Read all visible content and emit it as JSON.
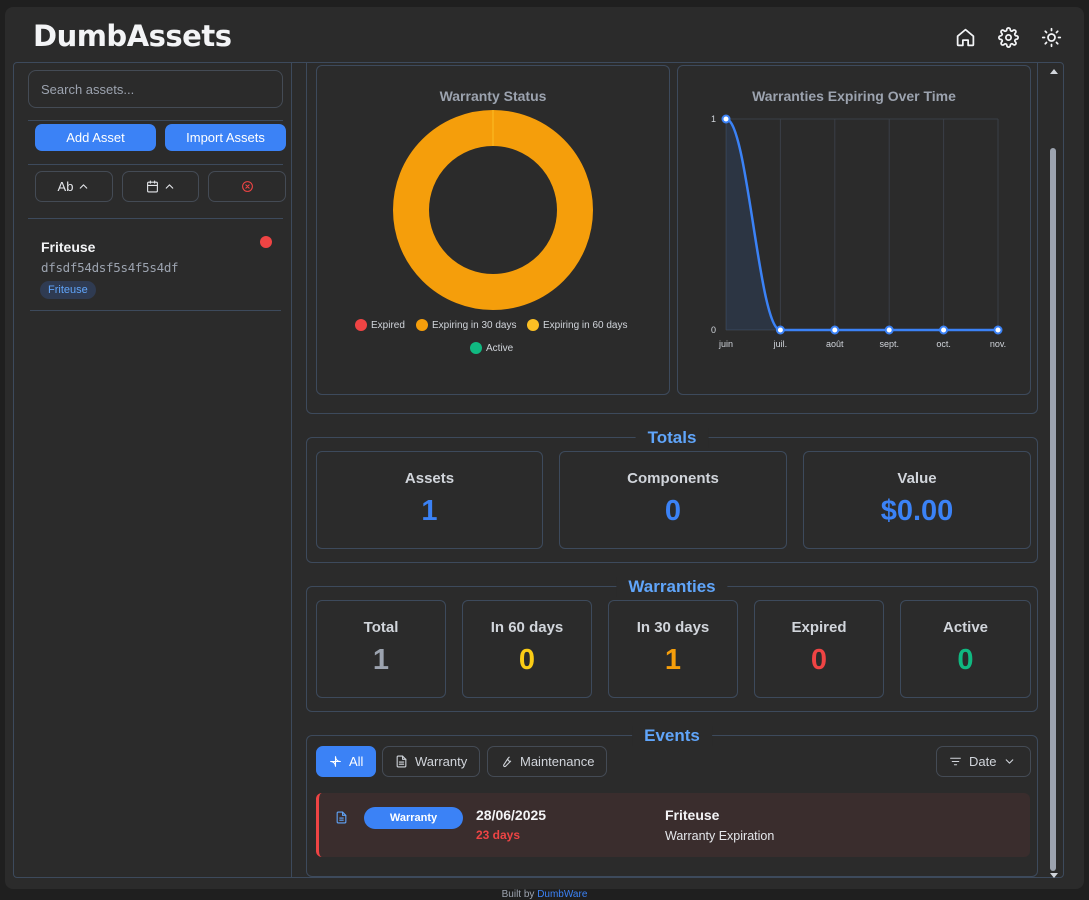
{
  "app": {
    "title": "DumbAssets"
  },
  "header": {
    "icons": [
      "home-icon",
      "gear-icon",
      "sun-icon"
    ]
  },
  "sidebar": {
    "search_placeholder": "Search assets...",
    "add_label": "Add Asset",
    "import_label": "Import Assets",
    "sort_name_label": "Ab",
    "assets": [
      {
        "name": "Friteuse",
        "serial": "dfsdf54dsf5s4f5s4df",
        "tag": "Friteuse",
        "status_color": "#ef4444"
      }
    ]
  },
  "charts": {
    "status": {
      "title": "Warranty Status",
      "legend": [
        {
          "label": "Expired",
          "color": "#ef4444"
        },
        {
          "label": "Expiring in 30 days",
          "color": "#f59e0b"
        },
        {
          "label": "Expiring in 60 days",
          "color": "#fbbf24"
        },
        {
          "label": "Active",
          "color": "#10b981"
        }
      ]
    },
    "timeline": {
      "title": "Warranties Expiring Over Time"
    }
  },
  "chart_data": [
    {
      "type": "pie",
      "title": "Warranty Status",
      "categories": [
        "Expired",
        "Expiring in 30 days",
        "Expiring in 60 days",
        "Active"
      ],
      "values": [
        0,
        1,
        0,
        0
      ],
      "legend": "bottom"
    },
    {
      "type": "line",
      "title": "Warranties Expiring Over Time",
      "categories": [
        "juin",
        "juil.",
        "août",
        "sept.",
        "oct.",
        "nov."
      ],
      "values": [
        1,
        0,
        0,
        0,
        0,
        0
      ],
      "ylim": [
        0,
        1
      ],
      "yticks": [
        0,
        1
      ],
      "grid": true
    }
  ],
  "totals": {
    "title": "Totals",
    "cards": [
      {
        "label": "Assets",
        "value": "1",
        "color": "#3b82f6"
      },
      {
        "label": "Components",
        "value": "0",
        "color": "#3b82f6"
      },
      {
        "label": "Value",
        "value": "$0.00",
        "color": "#3b82f6"
      }
    ]
  },
  "warranties": {
    "title": "Warranties",
    "cards": [
      {
        "label": "Total",
        "value": "1",
        "color": "#9ca3af"
      },
      {
        "label": "In 60 days",
        "value": "0",
        "color": "#facc15"
      },
      {
        "label": "In 30 days",
        "value": "1",
        "color": "#f59e0b"
      },
      {
        "label": "Expired",
        "value": "0",
        "color": "#ef4444"
      },
      {
        "label": "Active",
        "value": "0",
        "color": "#10b981"
      }
    ]
  },
  "events": {
    "title": "Events",
    "filters": {
      "all": "All",
      "warranty": "Warranty",
      "maintenance": "Maintenance"
    },
    "sort_label": "Date",
    "items": [
      {
        "type": "Warranty",
        "date": "28/06/2025",
        "days": "23 days",
        "asset": "Friteuse",
        "description": "Warranty Expiration"
      }
    ]
  },
  "footer": {
    "prefix": "Built by ",
    "link": "DumbWare"
  }
}
